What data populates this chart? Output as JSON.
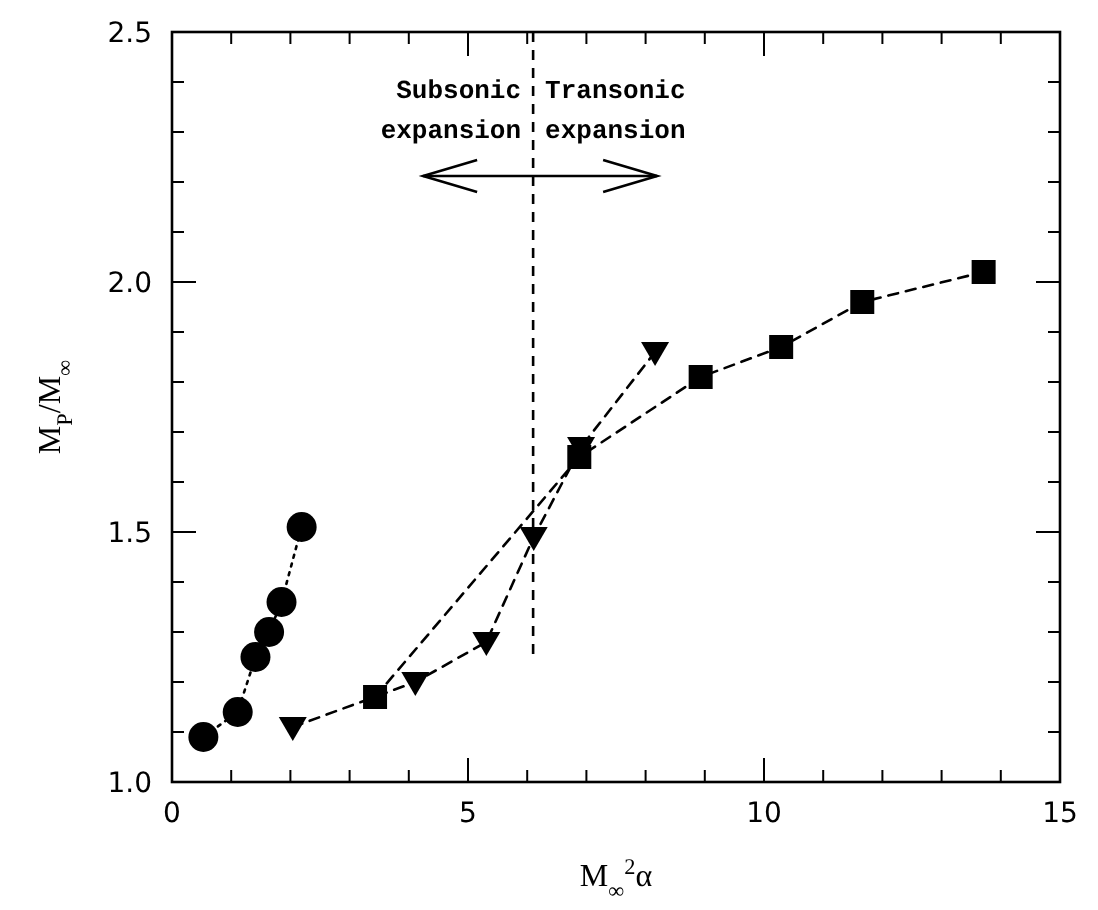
{
  "chart_data": {
    "type": "line",
    "xlabel": "M$_{∞}$$^{2}$α",
    "ylabel": "M$_{P}$/M$_{∞}$",
    "xlim": [
      0,
      15
    ],
    "ylim": [
      1.0,
      2.5
    ],
    "xticks": [
      0,
      {
        "value": 1,
        "label": null
      },
      {
        "value": 2,
        "label": null
      },
      {
        "value": 3,
        "label": null
      },
      {
        "value": 4,
        "label": null
      },
      5,
      {
        "value": 6,
        "label": null
      },
      {
        "value": 7,
        "label": null
      },
      {
        "value": 8,
        "label": null
      },
      {
        "value": 9,
        "label": null
      },
      10,
      {
        "value": 11,
        "label": null
      },
      {
        "value": 12,
        "label": null
      },
      {
        "value": 13,
        "label": null
      },
      {
        "value": 14,
        "label": null
      },
      15
    ],
    "yticks": [
      {
        "value": 1.0,
        "label": "1.0"
      },
      {
        "value": 1.1,
        "label": null
      },
      {
        "value": 1.2,
        "label": null
      },
      {
        "value": 1.3,
        "label": null
      },
      {
        "value": 1.4,
        "label": null
      },
      {
        "value": 1.5,
        "label": "1.5"
      },
      {
        "value": 1.6,
        "label": null
      },
      {
        "value": 1.7,
        "label": null
      },
      {
        "value": 1.8,
        "label": null
      },
      {
        "value": 1.9,
        "label": null
      },
      {
        "value": 2.0,
        "label": "2.0"
      },
      {
        "value": 2.1,
        "label": null
      },
      {
        "value": 2.2,
        "label": null
      },
      {
        "value": 2.3,
        "label": null
      },
      {
        "value": 2.4,
        "label": null
      },
      {
        "value": 2.5,
        "label": "2.5"
      }
    ],
    "series": [
      {
        "color": "#000000",
        "marker": "circle",
        "line_style": "dotted",
        "x": [
          0.53,
          1.11,
          1.41,
          1.64,
          1.85,
          2.19
        ],
        "values": [
          1.09,
          1.14,
          1.25,
          1.3,
          1.36,
          1.51
        ]
      },
      {
        "color": "#000000",
        "marker": "triangle",
        "line_style": "dashed",
        "x": [
          2.04,
          4.11,
          5.31,
          6.11,
          6.91,
          8.16
        ],
        "values": [
          1.11,
          1.2,
          1.28,
          1.49,
          1.67,
          1.86
        ]
      },
      {
        "color": "#000000",
        "marker": "square",
        "line_style": "dashed",
        "x": [
          3.43,
          6.88,
          8.93,
          10.29,
          11.66,
          13.71
        ],
        "values": [
          1.17,
          1.65,
          1.81,
          1.87,
          1.96,
          2.02
        ]
      }
    ],
    "ref_lines": [
      {
        "axis": "x",
        "value": 6.1,
        "line_style": "dashed",
        "color": "#000000"
      }
    ],
    "annotations": [
      "Subsonic\nexpansion",
      "Transonic\nexpansion"
    ]
  }
}
